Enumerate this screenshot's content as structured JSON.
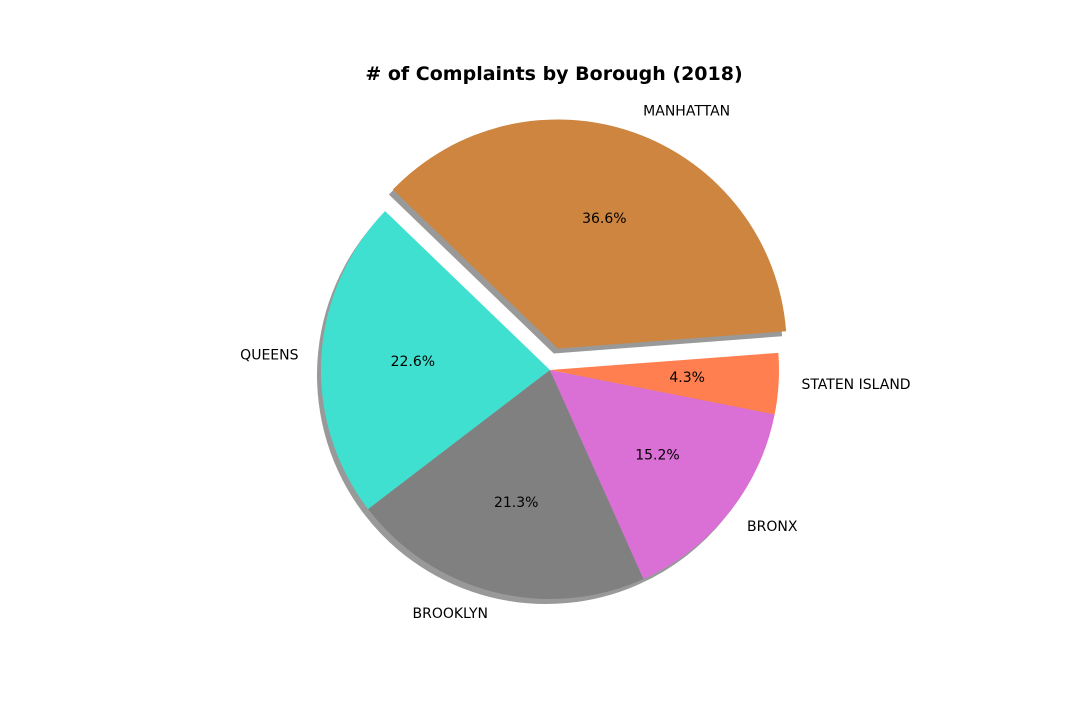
{
  "chart_data": {
    "type": "pie",
    "title": "# of Complaints by Borough (2018)",
    "categories": [
      "MANHATTAN",
      "QUEENS",
      "BROOKLYN",
      "BRONX",
      "STATEN ISLAND"
    ],
    "values": [
      36.6,
      22.6,
      21.3,
      15.2,
      4.3
    ],
    "value_labels": [
      "36.6%",
      "22.6%",
      "21.3%",
      "15.2%",
      "4.3%"
    ],
    "colors": [
      "#cd853f",
      "#40e0d0",
      "#808080",
      "#da70d6",
      "#ff7f50"
    ],
    "exploded": [
      "MANHATTAN"
    ],
    "shadow": true,
    "start_angle_deg": 4.3,
    "direction": "counterclockwise"
  }
}
